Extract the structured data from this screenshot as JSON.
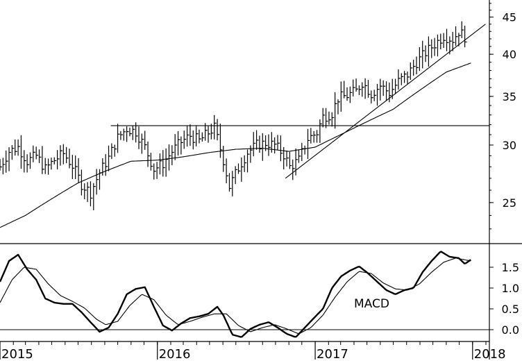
{
  "chart_data": [
    {
      "type": "ohlc",
      "panel": "price",
      "y_scale": "log",
      "ylim": [
        22.0,
        47.5
      ],
      "y_ticks": [
        25,
        30,
        35,
        40,
        45
      ],
      "x_range": [
        "2015-01-01",
        "2018-02-09"
      ],
      "x_tick_labels": [
        {
          "date": "2015-01-01",
          "label": "2015"
        },
        {
          "date": "2016-01-01",
          "label": "2016"
        },
        {
          "date": "2017-01-01",
          "label": "2017"
        },
        {
          "date": "2018-01-01",
          "label": "2018"
        }
      ],
      "anchors": [
        [
          "2015-01-01",
          28.0
        ],
        [
          "2015-01-22",
          29.4
        ],
        [
          "2015-02-12",
          29.8
        ],
        [
          "2015-03-05",
          28.5
        ],
        [
          "2015-03-26",
          29.0
        ],
        [
          "2015-04-16",
          27.8
        ],
        [
          "2015-05-07",
          28.6
        ],
        [
          "2015-05-28",
          29.2
        ],
        [
          "2015-06-18",
          28.1
        ],
        [
          "2015-07-09",
          26.5
        ],
        [
          "2015-07-30",
          25.8
        ],
        [
          "2015-08-20",
          27.5
        ],
        [
          "2015-09-10",
          28.8
        ],
        [
          "2015-10-01",
          30.7
        ],
        [
          "2015-10-22",
          31.6
        ],
        [
          "2015-11-12",
          31.3
        ],
        [
          "2015-12-03",
          29.8
        ],
        [
          "2015-12-24",
          27.8
        ],
        [
          "2016-01-14",
          28.3
        ],
        [
          "2016-02-04",
          29.4
        ],
        [
          "2016-02-25",
          30.3
        ],
        [
          "2016-03-17",
          30.9
        ],
        [
          "2016-04-07",
          30.4
        ],
        [
          "2016-04-28",
          31.2
        ],
        [
          "2016-05-12",
          31.7
        ],
        [
          "2016-06-02",
          28.6
        ],
        [
          "2016-06-16",
          26.3
        ],
        [
          "2016-07-07",
          27.9
        ],
        [
          "2016-07-28",
          29.3
        ],
        [
          "2016-08-18",
          30.0
        ],
        [
          "2016-09-08",
          30.2
        ],
        [
          "2016-09-29",
          30.0
        ],
        [
          "2016-10-20",
          29.1
        ],
        [
          "2016-11-03",
          28.0
        ],
        [
          "2016-11-24",
          28.6
        ],
        [
          "2016-12-15",
          30.6
        ],
        [
          "2017-01-05",
          31.2
        ],
        [
          "2017-01-19",
          32.8
        ],
        [
          "2017-02-09",
          33.2
        ],
        [
          "2017-02-23",
          34.8
        ],
        [
          "2017-03-16",
          35.1
        ],
        [
          "2017-04-06",
          35.6
        ],
        [
          "2017-04-20",
          36.6
        ],
        [
          "2017-05-11",
          35.3
        ],
        [
          "2017-06-01",
          36.2
        ],
        [
          "2017-06-22",
          35.4
        ],
        [
          "2017-07-13",
          36.7
        ],
        [
          "2017-08-03",
          37.5
        ],
        [
          "2017-08-24",
          39.0
        ],
        [
          "2017-09-14",
          40.2
        ],
        [
          "2017-10-05",
          41.3
        ],
        [
          "2017-10-26",
          42.4
        ],
        [
          "2017-11-16",
          41.9
        ],
        [
          "2017-11-30",
          43.0
        ],
        [
          "2017-12-14",
          42.3
        ]
      ],
      "moving_average": [
        [
          "2015-01-01",
          23.1
        ],
        [
          "2015-03-01",
          24.0
        ],
        [
          "2015-05-01",
          25.3
        ],
        [
          "2015-07-01",
          26.6
        ],
        [
          "2015-09-01",
          27.6
        ],
        [
          "2015-11-01",
          28.5
        ],
        [
          "2016-01-01",
          28.6
        ],
        [
          "2016-03-01",
          28.9
        ],
        [
          "2016-05-01",
          29.3
        ],
        [
          "2016-07-01",
          29.6
        ],
        [
          "2016-09-01",
          29.7
        ],
        [
          "2016-11-01",
          29.4
        ],
        [
          "2017-01-01",
          29.8
        ],
        [
          "2017-03-01",
          31.0
        ],
        [
          "2017-05-01",
          32.3
        ],
        [
          "2017-07-01",
          33.6
        ],
        [
          "2017-09-01",
          35.7
        ],
        [
          "2017-11-01",
          37.8
        ],
        [
          "2017-12-28",
          38.9
        ]
      ],
      "horizontal_line": {
        "value": 31.9,
        "x_start": "2015-09-15"
      },
      "trendline": {
        "start": [
          "2016-10-24",
          27.0
        ],
        "end": [
          "2018-01-31",
          44.0
        ]
      }
    },
    {
      "type": "line",
      "panel": "indicator",
      "label": "MACD",
      "ylim": [
        -0.25,
        2.05
      ],
      "y_ticks": [
        0.0,
        0.5,
        1.0,
        1.5
      ],
      "y_tick_labels": [
        "0.0",
        "0.5",
        "1.0",
        "1.5"
      ],
      "zero_line": 0.0,
      "series": [
        {
          "values": [
            [
              "2015-01-01",
              1.15
            ],
            [
              "2015-01-22",
              1.65
            ],
            [
              "2015-02-12",
              1.8
            ],
            [
              "2015-03-05",
              1.45
            ],
            [
              "2015-03-26",
              1.2
            ],
            [
              "2015-04-16",
              0.75
            ],
            [
              "2015-05-07",
              0.65
            ],
            [
              "2015-05-28",
              0.62
            ],
            [
              "2015-06-18",
              0.62
            ],
            [
              "2015-07-09",
              0.42
            ],
            [
              "2015-07-30",
              0.18
            ],
            [
              "2015-08-20",
              -0.05
            ],
            [
              "2015-09-10",
              0.05
            ],
            [
              "2015-10-01",
              0.38
            ],
            [
              "2015-10-22",
              0.85
            ],
            [
              "2015-11-12",
              0.98
            ],
            [
              "2015-12-03",
              1.02
            ],
            [
              "2015-12-24",
              0.55
            ],
            [
              "2016-01-14",
              0.1
            ],
            [
              "2016-02-04",
              -0.02
            ],
            [
              "2016-02-25",
              0.15
            ],
            [
              "2016-03-17",
              0.28
            ],
            [
              "2016-04-07",
              0.32
            ],
            [
              "2016-04-28",
              0.38
            ],
            [
              "2016-05-19",
              0.55
            ],
            [
              "2016-06-02",
              0.35
            ],
            [
              "2016-06-23",
              -0.12
            ],
            [
              "2016-07-14",
              -0.18
            ],
            [
              "2016-08-04",
              0.02
            ],
            [
              "2016-08-25",
              0.12
            ],
            [
              "2016-09-15",
              0.18
            ],
            [
              "2016-10-06",
              0.05
            ],
            [
              "2016-10-27",
              -0.1
            ],
            [
              "2016-11-17",
              -0.18
            ],
            [
              "2016-12-08",
              0.05
            ],
            [
              "2016-12-29",
              0.28
            ],
            [
              "2017-01-19",
              0.5
            ],
            [
              "2017-02-09",
              1.0
            ],
            [
              "2017-03-02",
              1.28
            ],
            [
              "2017-03-23",
              1.42
            ],
            [
              "2017-04-13",
              1.52
            ],
            [
              "2017-05-04",
              1.35
            ],
            [
              "2017-05-25",
              1.15
            ],
            [
              "2017-06-15",
              0.95
            ],
            [
              "2017-07-06",
              0.85
            ],
            [
              "2017-07-27",
              0.95
            ],
            [
              "2017-08-17",
              1.0
            ],
            [
              "2017-09-07",
              1.38
            ],
            [
              "2017-09-28",
              1.65
            ],
            [
              "2017-10-19",
              1.88
            ],
            [
              "2017-11-09",
              1.75
            ],
            [
              "2017-11-30",
              1.72
            ],
            [
              "2017-12-14",
              1.58
            ],
            [
              "2017-12-28",
              1.68
            ]
          ]
        },
        {
          "values": [
            [
              "2015-01-01",
              0.65
            ],
            [
              "2015-01-29",
              1.2
            ],
            [
              "2015-02-26",
              1.5
            ],
            [
              "2015-03-26",
              1.45
            ],
            [
              "2015-04-23",
              1.1
            ],
            [
              "2015-05-21",
              0.82
            ],
            [
              "2015-06-18",
              0.68
            ],
            [
              "2015-07-16",
              0.52
            ],
            [
              "2015-08-13",
              0.25
            ],
            [
              "2015-09-03",
              0.12
            ],
            [
              "2015-10-01",
              0.2
            ],
            [
              "2015-10-29",
              0.58
            ],
            [
              "2015-11-26",
              0.85
            ],
            [
              "2015-12-24",
              0.72
            ],
            [
              "2016-01-21",
              0.35
            ],
            [
              "2016-02-18",
              0.12
            ],
            [
              "2016-03-17",
              0.2
            ],
            [
              "2016-04-14",
              0.3
            ],
            [
              "2016-05-12",
              0.38
            ],
            [
              "2016-06-09",
              0.38
            ],
            [
              "2016-07-07",
              0.1
            ],
            [
              "2016-08-04",
              -0.05
            ],
            [
              "2016-09-01",
              0.05
            ],
            [
              "2016-09-29",
              0.12
            ],
            [
              "2016-10-27",
              0.02
            ],
            [
              "2016-11-24",
              -0.1
            ],
            [
              "2016-12-22",
              0.05
            ],
            [
              "2017-01-19",
              0.35
            ],
            [
              "2017-02-16",
              0.78
            ],
            [
              "2017-03-16",
              1.15
            ],
            [
              "2017-04-13",
              1.4
            ],
            [
              "2017-05-11",
              1.35
            ],
            [
              "2017-06-08",
              1.12
            ],
            [
              "2017-07-06",
              0.98
            ],
            [
              "2017-08-03",
              0.95
            ],
            [
              "2017-08-31",
              1.1
            ],
            [
              "2017-09-28",
              1.38
            ],
            [
              "2017-10-26",
              1.62
            ],
            [
              "2017-11-23",
              1.72
            ],
            [
              "2017-12-28",
              1.65
            ]
          ]
        }
      ]
    }
  ]
}
